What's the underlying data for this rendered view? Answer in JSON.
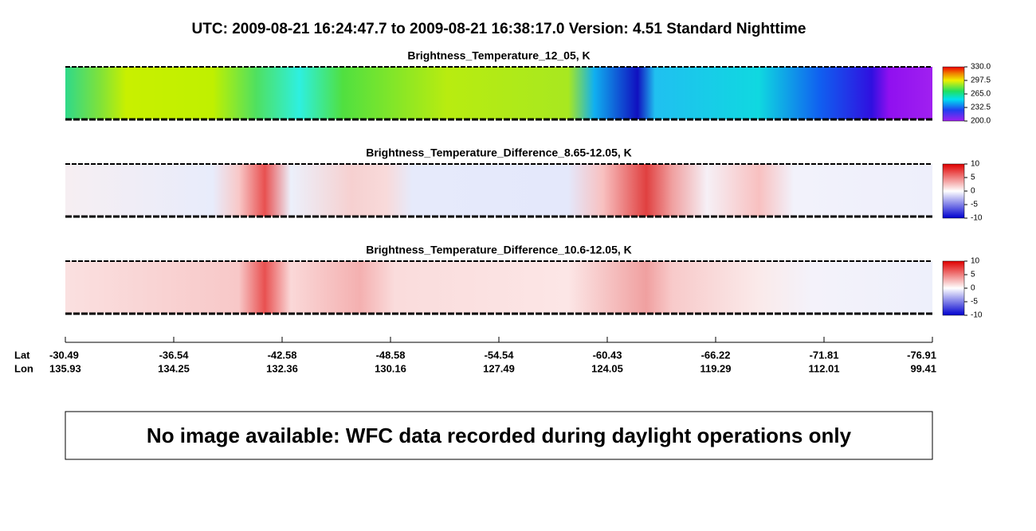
{
  "header": {
    "title": "UTC:  2009-08-21   16:24:47.7  to  2009-08-21   16:38:17.0    Version: 4.51  Standard Nighttime"
  },
  "chart_data": [
    {
      "type": "heatmap",
      "title": "Brightness_Temperature_12_05, K",
      "clim": [
        200,
        330
      ],
      "cticks": [
        {
          "value": 330,
          "label": "330.0"
        },
        {
          "value": 297.5,
          "label": "297.5"
        },
        {
          "value": 265,
          "label": "265.0"
        },
        {
          "value": 232.5,
          "label": "232.5"
        },
        {
          "value": 200,
          "label": "200.0"
        }
      ]
    },
    {
      "type": "heatmap",
      "title": "Brightness_Temperature_Difference_8.65-12.05, K",
      "clim": [
        -10,
        10
      ],
      "cticks": [
        10,
        5,
        0,
        -5,
        -10
      ]
    },
    {
      "type": "heatmap",
      "title": "Brightness_Temperature_Difference_10.6-12.05, K",
      "clim": [
        -10,
        10
      ],
      "cticks": [
        10,
        5,
        0,
        -5,
        -10
      ]
    }
  ],
  "axis": {
    "lat_label": "Lat",
    "lon_label": "Lon",
    "lat": [
      "-30.49",
      "-36.54",
      "-42.58",
      "-48.58",
      "-54.54",
      "-60.43",
      "-66.22",
      "-71.81",
      "-76.91"
    ],
    "lon": [
      "135.93",
      "134.25",
      "132.36",
      "130.16",
      "127.49",
      "124.05",
      "119.29",
      "112.01",
      "99.41"
    ]
  },
  "notice": "No image available: WFC data recorded during daylight operations only"
}
